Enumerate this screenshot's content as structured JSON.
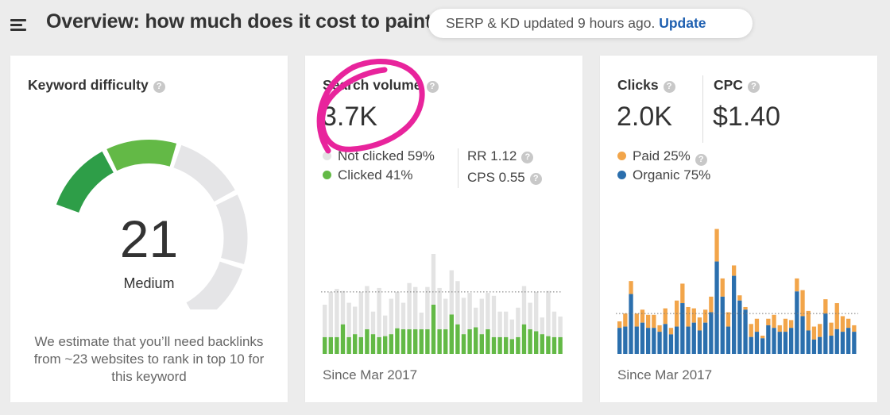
{
  "header": {
    "title": "Overview: how much does it cost to paint a house",
    "menu_icon": "menu-icon"
  },
  "toast": {
    "message": "SERP & KD updated 9 hours ago.",
    "action": "Update"
  },
  "keyword_difficulty": {
    "label": "Keyword difficulty",
    "value": "21",
    "score": 21,
    "level": "Medium",
    "estimate": "We estimate that you’ll need backlinks from ~23 websites to rank in top 10 for this keyword",
    "colors": {
      "filled_dark": "#2e9e48",
      "filled_light": "#63b946",
      "empty": "#e5e5e7"
    }
  },
  "search_volume": {
    "label": "Search volume",
    "value": "3.7K",
    "legend": [
      {
        "label": "Not clicked 59%",
        "color": "#e3e3e3"
      },
      {
        "label": "Clicked 41%",
        "color": "#63b946"
      }
    ],
    "rr": "RR 1.12",
    "cps": "CPS 0.55",
    "since": "Since Mar 2017",
    "chart_data": {
      "type": "bar",
      "title": "Search volume",
      "xlabel": "Since Mar 2017",
      "ylim": [
        0,
        100
      ],
      "average": 63,
      "series": [
        {
          "name": "Not clicked",
          "color": "#e3e3e3",
          "values": [
            33,
            46,
            49,
            34,
            35,
            28,
            46,
            44,
            23,
            50,
            21,
            36,
            37,
            27,
            47,
            43,
            17,
            43,
            52,
            42,
            31,
            45,
            44,
            37,
            37,
            20,
            36,
            37,
            42,
            26,
            26,
            20,
            30,
            39,
            27,
            40,
            17,
            46,
            26,
            21
          ]
        },
        {
          "name": "Clicked",
          "color": "#63b946",
          "values": [
            17,
            17,
            17,
            30,
            17,
            20,
            17,
            25,
            20,
            17,
            18,
            20,
            26,
            25,
            25,
            25,
            25,
            25,
            50,
            25,
            25,
            40,
            30,
            20,
            25,
            27,
            20,
            25,
            17,
            17,
            17,
            15,
            17,
            30,
            25,
            23,
            20,
            18,
            17,
            17
          ]
        }
      ]
    }
  },
  "clicks": {
    "clicks_label": "Clicks",
    "clicks_value": "2.0K",
    "cpc_label": "CPC",
    "cpc_value": "$1.40",
    "legend": [
      {
        "label": "Paid 25%",
        "color": "#f2a54a"
      },
      {
        "label": "Organic 75%",
        "color": "#2b6fad"
      }
    ],
    "since": "Since Mar 2017",
    "chart_data": {
      "type": "bar",
      "title": "Clicks",
      "xlabel": "Since Mar 2017",
      "ylim": [
        0,
        100
      ],
      "average": 31,
      "series": [
        {
          "name": "Organic",
          "color": "#2b6fad",
          "values": [
            20,
            21,
            46,
            21,
            24,
            20,
            20,
            17,
            23,
            15,
            21,
            39,
            21,
            24,
            18,
            24,
            32,
            71,
            44,
            21,
            60,
            41,
            34,
            13,
            17,
            12,
            22,
            20,
            17,
            17,
            20,
            48,
            29,
            18,
            11,
            13,
            31,
            14,
            19,
            17,
            20,
            17
          ]
        },
        {
          "name": "Paid",
          "color": "#f2a54a",
          "values": [
            5,
            10,
            10,
            10,
            10,
            10,
            10,
            5,
            12,
            5,
            20,
            15,
            15,
            11,
            10,
            10,
            12,
            25,
            14,
            11,
            8,
            4,
            2,
            10,
            10,
            2,
            5,
            10,
            5,
            10,
            6,
            10,
            20,
            15,
            10,
            10,
            11,
            10,
            20,
            12,
            7,
            5
          ]
        }
      ]
    }
  }
}
